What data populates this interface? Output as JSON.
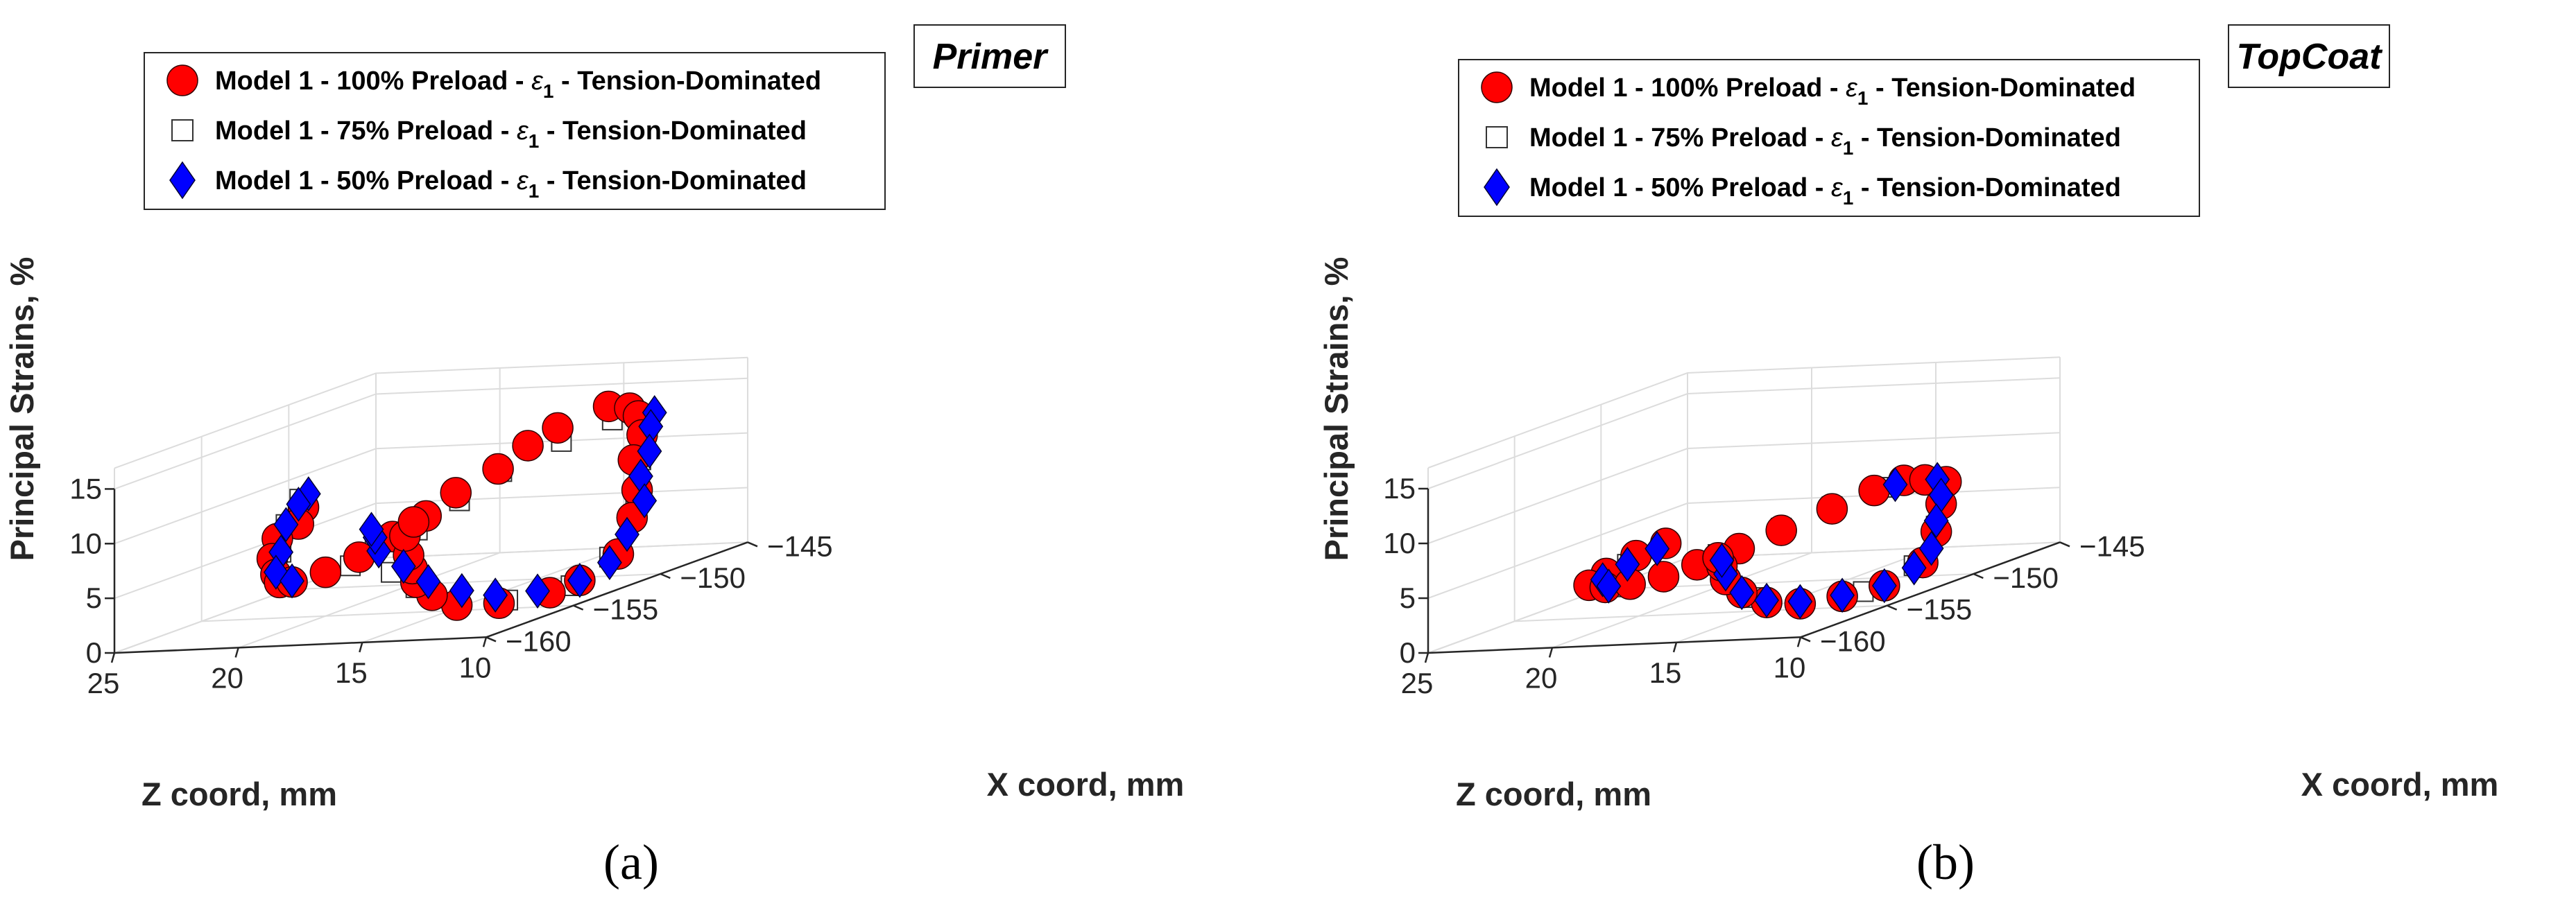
{
  "chart_data": [
    {
      "type": "scatter",
      "panel": "(a)",
      "title": "Primer",
      "xlabel": "Z coord, mm",
      "ylabel": "X coord, mm",
      "zlabel": "Principal Strains, %",
      "xlim": [
        10,
        25
      ],
      "ylim": [
        -160,
        -145
      ],
      "zlim": [
        0,
        15
      ],
      "xticks": [
        "25",
        "20",
        "15",
        "10"
      ],
      "yticks": [
        "−160",
        "−155",
        "−150",
        "−145"
      ],
      "zticks": [
        "0",
        "5",
        "10",
        "15"
      ],
      "legend": [
        {
          "pre": "Model 1 - 100% Preload - ",
          "sym": "ε",
          "sub": "1",
          "post": " - Tension-Dominated"
        },
        {
          "pre": "Model 1 - 75% Preload - ",
          "sym": "ε",
          "sub": "1",
          "post": " - Tension-Dominated"
        },
        {
          "pre": "Model 1 - 50% Preload - ",
          "sym": "ε",
          "sub": "1",
          "post": " - Tension-Dominated"
        }
      ],
      "series": [
        {
          "name": "100% Preload",
          "marker": "circle",
          "color": "#ff0000",
          "points": [
            [
              23.0,
              -152.0,
              8.5
            ],
            [
              22.5,
              -153.0,
              7.5
            ],
            [
              23.0,
              -153.5,
              6.5
            ],
            [
              22.5,
              -154.5,
              5.2
            ],
            [
              22.0,
              -155.0,
              4.0
            ],
            [
              21.5,
              -155.5,
              3.5
            ],
            [
              21.0,
              -155.5,
              3.5
            ],
            [
              20.0,
              -155.0,
              4.0
            ],
            [
              19.0,
              -154.5,
              5.0
            ],
            [
              18.0,
              -154.0,
              6.5
            ],
            [
              17.0,
              -153.5,
              8.0
            ],
            [
              16.5,
              -152.5,
              9.5
            ],
            [
              15.5,
              -151.5,
              11.0
            ],
            [
              15.0,
              -150.5,
              12.5
            ],
            [
              14.5,
              -149.5,
              13.5
            ],
            [
              13.5,
              -148.0,
              14.5
            ],
            [
              13.0,
              -147.5,
              14.0
            ],
            [
              13.0,
              -147.0,
              13.0
            ],
            [
              12.5,
              -147.5,
              11.5
            ],
            [
              12.5,
              -148.0,
              9.5
            ],
            [
              12.0,
              -148.5,
              7.0
            ],
            [
              11.5,
              -149.5,
              5.0
            ],
            [
              11.0,
              -151.0,
              2.5
            ],
            [
              11.5,
              -152.5,
              1.0
            ],
            [
              12.0,
              -153.5,
              0.5
            ],
            [
              13.0,
              -155.0,
              0.5
            ],
            [
              14.0,
              -156.0,
              1.0
            ],
            [
              15.0,
              -156.0,
              2.0
            ],
            [
              16.0,
              -155.5,
              3.0
            ],
            [
              16.5,
              -155.0,
              4.0
            ],
            [
              17.0,
              -154.5,
              5.0
            ],
            [
              17.5,
              -154.0,
              6.5
            ],
            [
              17.5,
              -153.5,
              7.5
            ]
          ]
        },
        {
          "name": "75% Preload",
          "marker": "square",
          "color": "#ffffff",
          "points": [
            [
              23.5,
              -151.5,
              9.0
            ],
            [
              23.0,
              -153.0,
              7.5
            ],
            [
              22.5,
              -154.0,
              5.5
            ],
            [
              22.0,
              -155.0,
              4.0
            ],
            [
              21.0,
              -155.5,
              3.5
            ],
            [
              19.0,
              -155.0,
              4.5
            ],
            [
              17.0,
              -154.0,
              7.0
            ],
            [
              16.0,
              -153.0,
              9.0
            ],
            [
              15.0,
              -152.0,
              11.0
            ],
            [
              14.0,
              -150.0,
              12.5
            ],
            [
              13.0,
              -148.5,
              13.5
            ],
            [
              12.0,
              -148.0,
              13.0
            ],
            [
              11.5,
              -149.0,
              10.0
            ],
            [
              11.0,
              -150.0,
              6.0
            ],
            [
              11.0,
              -151.5,
              2.5
            ],
            [
              11.5,
              -153.0,
              0.8
            ],
            [
              13.0,
              -154.5,
              0.5
            ],
            [
              14.5,
              -155.5,
              1.0
            ],
            [
              16.0,
              -155.5,
              2.5
            ],
            [
              17.0,
              -155.5,
              4.0
            ],
            [
              18.0,
              -155.0,
              6.0
            ]
          ]
        },
        {
          "name": "50% Preload",
          "marker": "diamond",
          "color": "#0000ff",
          "points": [
            [
              23.5,
              -151.0,
              9.2
            ],
            [
              23.2,
              -152.0,
              8.8
            ],
            [
              23.0,
              -153.0,
              7.5
            ],
            [
              22.5,
              -154.0,
              5.5
            ],
            [
              22.0,
              -155.0,
              4.2
            ],
            [
              21.0,
              -155.5,
              3.6
            ],
            [
              12.0,
              -147.5,
              13.5
            ],
            [
              11.8,
              -148.0,
              12.5
            ],
            [
              11.5,
              -148.5,
              10.5
            ],
            [
              11.5,
              -149.0,
              8.5
            ],
            [
              11.0,
              -149.5,
              6.5
            ],
            [
              11.0,
              -150.5,
              4.0
            ],
            [
              11.0,
              -151.5,
              2.0
            ],
            [
              11.5,
              -152.5,
              1.0
            ],
            [
              12.5,
              -153.5,
              0.7
            ],
            [
              13.5,
              -154.5,
              1.0
            ],
            [
              14.5,
              -155.0,
              1.8
            ],
            [
              15.5,
              -155.5,
              3.0
            ],
            [
              16.5,
              -155.5,
              4.5
            ],
            [
              17.5,
              -155.5,
              6.0
            ],
            [
              18.0,
              -155.0,
              7.0
            ],
            [
              18.5,
              -154.5,
              7.5
            ]
          ]
        }
      ]
    },
    {
      "type": "scatter",
      "panel": "(b)",
      "title": "TopCoat",
      "xlabel": "Z coord, mm",
      "ylabel": "X coord, mm",
      "zlabel": "Principal Strains, %",
      "xlim": [
        10,
        25
      ],
      "ylim": [
        -160,
        -145
      ],
      "zlim": [
        0,
        15
      ],
      "xticks": [
        "25",
        "20",
        "15",
        "10"
      ],
      "yticks": [
        "−160",
        "−155",
        "−150",
        "−145"
      ],
      "zticks": [
        "0",
        "5",
        "10",
        "15"
      ],
      "legend": [
        {
          "pre": "Model 1 - 100% Preload - ",
          "sym": "ε",
          "sub": "1",
          "post": " - Tension-Dominated"
        },
        {
          "pre": "Model 1 - 75% Preload - ",
          "sym": "ε",
          "sub": "1",
          "post": " - Tension-Dominated"
        },
        {
          "pre": "Model 1 - 50% Preload - ",
          "sym": "ε",
          "sub": "1",
          "post": " - Tension-Dominated"
        }
      ],
      "series": [
        {
          "name": "100% Preload",
          "marker": "circle",
          "color": "#ff0000",
          "points": [
            [
              21.0,
              -152.0,
              5.0
            ],
            [
              21.5,
              -153.0,
              4.5
            ],
            [
              22.0,
              -154.0,
              3.5
            ],
            [
              22.0,
              -155.0,
              3.0
            ],
            [
              21.0,
              -155.5,
              3.0
            ],
            [
              20.0,
              -155.5,
              3.2
            ],
            [
              19.0,
              -155.0,
              3.5
            ],
            [
              18.0,
              -154.5,
              4.2
            ],
            [
              17.0,
              -153.5,
              5.0
            ],
            [
              16.0,
              -152.5,
              6.0
            ],
            [
              15.0,
              -151.0,
              7.0
            ],
            [
              14.0,
              -150.0,
              8.0
            ],
            [
              13.5,
              -149.0,
              8.3
            ],
            [
              13.0,
              -148.5,
              8.0
            ],
            [
              12.5,
              -148.0,
              7.5
            ],
            [
              12.0,
              -149.0,
              6.0
            ],
            [
              11.5,
              -150.0,
              4.0
            ],
            [
              11.0,
              -151.5,
              2.0
            ],
            [
              11.5,
              -153.0,
              0.8
            ],
            [
              12.5,
              -154.0,
              0.5
            ],
            [
              13.5,
              -155.0,
              0.5
            ],
            [
              14.5,
              -155.5,
              1.0
            ],
            [
              15.5,
              -155.5,
              2.0
            ],
            [
              16.5,
              -155.0,
              3.0
            ],
            [
              17.0,
              -154.5,
              4.0
            ],
            [
              17.5,
              -154.0,
              4.5
            ]
          ]
        },
        {
          "name": "75% Preload",
          "marker": "square",
          "color": "#ffffff",
          "points": [
            [
              21.5,
              -153.5,
              4.0
            ],
            [
              21.5,
              -154.5,
              3.0
            ],
            [
              20.5,
              -155.5,
              3.0
            ],
            [
              19.0,
              -155.0,
              3.5
            ],
            [
              17.5,
              -154.0,
              4.8
            ],
            [
              16.0,
              -152.5,
              6.2
            ],
            [
              15.0,
              -151.0,
              7.2
            ],
            [
              14.0,
              -149.5,
              8.0
            ],
            [
              13.0,
              -148.5,
              8.2
            ],
            [
              12.0,
              -149.0,
              6.5
            ],
            [
              11.5,
              -150.0,
              4.5
            ],
            [
              11.0,
              -152.0,
              2.0
            ],
            [
              12.0,
              -153.5,
              0.6
            ],
            [
              13.5,
              -155.0,
              0.6
            ],
            [
              15.0,
              -155.5,
              1.5
            ],
            [
              16.5,
              -155.0,
              3.2
            ]
          ]
        },
        {
          "name": "50% Preload",
          "marker": "diamond",
          "color": "#0000ff",
          "points": [
            [
              21.0,
              -152.5,
              4.8
            ],
            [
              21.5,
              -153.5,
              4.0
            ],
            [
              21.8,
              -154.5,
              3.2
            ],
            [
              21.0,
              -155.3,
              3.0
            ],
            [
              13.5,
              -149.5,
              8.2
            ],
            [
              12.5,
              -148.5,
              8.0
            ],
            [
              12.0,
              -149.0,
              6.8
            ],
            [
              11.5,
              -150.0,
              5.0
            ],
            [
              11.0,
              -151.0,
              3.0
            ],
            [
              11.0,
              -152.0,
              1.8
            ],
            [
              11.5,
              -153.0,
              0.8
            ],
            [
              12.5,
              -154.0,
              0.6
            ],
            [
              13.5,
              -155.0,
              0.7
            ],
            [
              14.5,
              -155.5,
              1.2
            ],
            [
              15.5,
              -155.5,
              2.0
            ],
            [
              16.5,
              -155.0,
              3.5
            ],
            [
              17.0,
              -154.5,
              4.5
            ]
          ]
        }
      ]
    }
  ],
  "captions": [
    "(a)",
    "(b)"
  ]
}
